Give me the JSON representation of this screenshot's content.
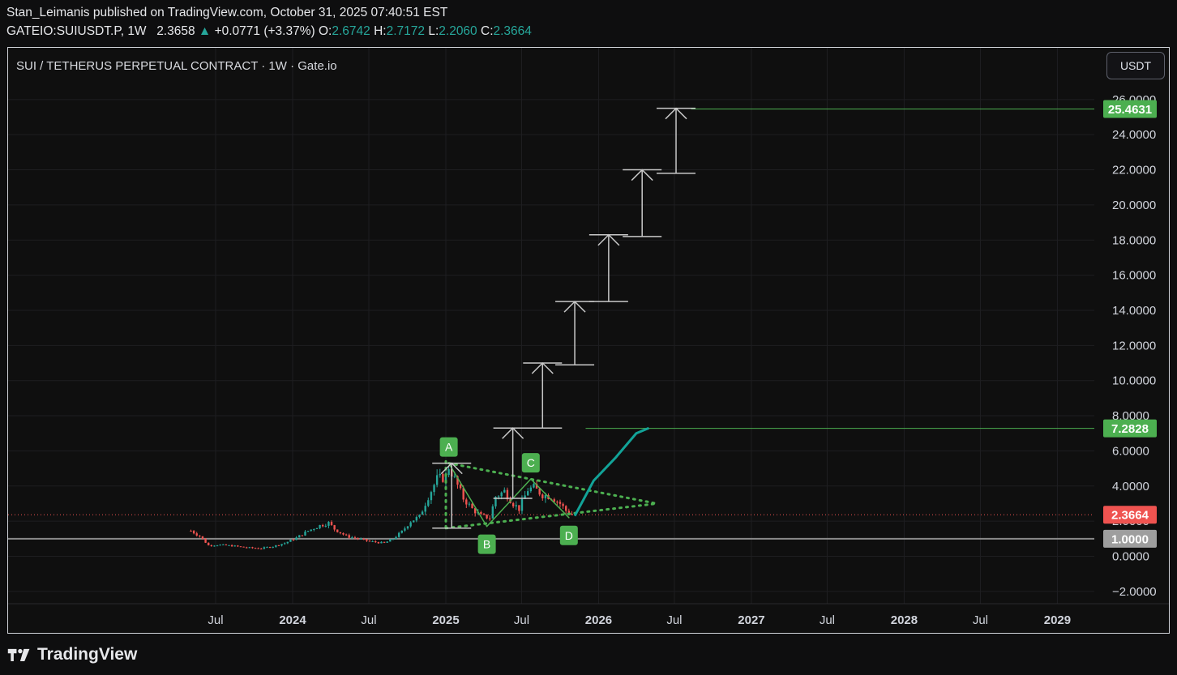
{
  "header": {
    "publish_line": "Stan_Leimanis published on TradingView.com, October 31, 2025 07:40:51 EST",
    "symbol": "GATEIO:SUIUSDT.P",
    "interval": "1W",
    "last": "2.3658",
    "change": "+0.0771 (+3.37%)",
    "o_label": "O:",
    "o": "2.6742",
    "h_label": "H:",
    "h": "2.7172",
    "l_label": "L:",
    "l": "2.2060",
    "c_label": "C:",
    "c": "2.3664"
  },
  "legend": "SUI / TETHERUS PERPETUAL CONTRACT · 1W · Gate.io",
  "currency_button": "USDT",
  "footer": {
    "brand": "TradingView"
  },
  "colors": {
    "up": "#26a69a",
    "down": "#ef5350",
    "pattern": "#4caf50",
    "projection": "#12a398",
    "arrow": "#c8c8c8",
    "level_line": "#8a8a8a"
  },
  "chart_data": {
    "type": "candlestick",
    "title": "SUI / TETHERUS PERPETUAL CONTRACT · 1W · Gate.io",
    "ylim": [
      -3,
      27
    ],
    "y_ticks": [
      -2,
      0,
      2,
      4,
      6,
      8,
      10,
      12,
      14,
      16,
      18,
      20,
      22,
      24,
      26
    ],
    "y_tick_labels": [
      "−2.0000",
      "0.0000",
      "2.0000",
      "4.0000",
      "6.0000",
      "8.0000",
      "10.0000",
      "12.0000",
      "14.0000",
      "16.0000",
      "18.0000",
      "20.0000",
      "22.0000",
      "24.0000",
      "26.0000"
    ],
    "x_range": [
      "2023-04-01",
      "2029-06-15"
    ],
    "x_ticks": [
      {
        "date": "2023-07-01",
        "label": "Jul",
        "bold": false
      },
      {
        "date": "2024-01-01",
        "label": "2024",
        "bold": true
      },
      {
        "date": "2024-07-01",
        "label": "Jul",
        "bold": false
      },
      {
        "date": "2025-01-01",
        "label": "2025",
        "bold": true
      },
      {
        "date": "2025-07-01",
        "label": "Jul",
        "bold": false
      },
      {
        "date": "2026-01-01",
        "label": "2026",
        "bold": true
      },
      {
        "date": "2026-07-01",
        "label": "Jul",
        "bold": false
      },
      {
        "date": "2027-01-01",
        "label": "2027",
        "bold": true
      },
      {
        "date": "2027-07-01",
        "label": "Jul",
        "bold": false
      },
      {
        "date": "2028-01-01",
        "label": "2028",
        "bold": true
      },
      {
        "date": "2028-07-01",
        "label": "Jul",
        "bold": false
      },
      {
        "date": "2029-01-01",
        "label": "2029",
        "bold": true
      }
    ],
    "price_path": [
      [
        "2023-05-03",
        1.45
      ],
      [
        "2023-05-24",
        1.15
      ],
      [
        "2023-06-14",
        0.62
      ],
      [
        "2023-07-12",
        0.65
      ],
      [
        "2023-08-16",
        0.58
      ],
      [
        "2023-09-13",
        0.49
      ],
      [
        "2023-10-18",
        0.45
      ],
      [
        "2023-11-15",
        0.56
      ],
      [
        "2023-12-13",
        0.75
      ],
      [
        "2024-01-10",
        1.05
      ],
      [
        "2024-02-07",
        1.45
      ],
      [
        "2024-03-06",
        1.75
      ],
      [
        "2024-03-27",
        1.9
      ],
      [
        "2024-04-10",
        1.55
      ],
      [
        "2024-05-08",
        1.15
      ],
      [
        "2024-06-05",
        1.0
      ],
      [
        "2024-07-03",
        0.85
      ],
      [
        "2024-08-07",
        0.75
      ],
      [
        "2024-08-28",
        1.0
      ],
      [
        "2024-09-18",
        1.4
      ],
      [
        "2024-10-09",
        2.0
      ],
      [
        "2024-10-30",
        2.25
      ],
      [
        "2024-11-20",
        3.4
      ],
      [
        "2024-12-11",
        4.4
      ],
      [
        "2025-01-01",
        4.5
      ],
      [
        "2025-01-08",
        5.1
      ],
      [
        "2025-01-22",
        4.4
      ],
      [
        "2025-02-12",
        3.3
      ],
      [
        "2025-03-05",
        2.7
      ],
      [
        "2025-03-26",
        2.3
      ],
      [
        "2025-04-16",
        2.2
      ],
      [
        "2025-04-30",
        3.4
      ],
      [
        "2025-05-21",
        3.7
      ],
      [
        "2025-06-11",
        3.0
      ],
      [
        "2025-06-25",
        2.7
      ],
      [
        "2025-07-16",
        3.8
      ],
      [
        "2025-07-30",
        3.9
      ],
      [
        "2025-08-20",
        3.5
      ],
      [
        "2025-09-10",
        3.4
      ],
      [
        "2025-10-01",
        3.0
      ],
      [
        "2025-10-15",
        2.6
      ],
      [
        "2025-10-29",
        2.3664
      ]
    ],
    "last_price": 2.3664,
    "pattern_points": [
      {
        "label": "A",
        "date": "2025-01-08",
        "price": 5.3
      },
      {
        "label": "B",
        "date": "2025-04-09",
        "price": 1.7
      },
      {
        "label": "C",
        "date": "2025-07-23",
        "price": 4.4
      },
      {
        "label": "D",
        "date": "2025-10-22",
        "price": 2.2
      }
    ],
    "target_lines": [
      {
        "label": "25.4631",
        "price": 25.4631,
        "start": "2026-08-10"
      },
      {
        "label": "7.2828",
        "price": 7.2828,
        "start": "2025-12-01"
      }
    ],
    "horizontal_levels": [
      {
        "label": "1.0000",
        "price": 1.0
      }
    ],
    "step_arrows": [
      {
        "x": "2025-01-15",
        "from": 1.6,
        "to": 5.3
      },
      {
        "x": "2025-06-10",
        "from": 3.3,
        "to": 7.3
      },
      {
        "x": "2025-08-20",
        "from": 7.3,
        "to": 11.0
      },
      {
        "x": "2025-11-05",
        "from": 10.9,
        "to": 14.5
      },
      {
        "x": "2026-01-25",
        "from": 14.5,
        "to": 18.3
      },
      {
        "x": "2026-04-15",
        "from": 18.2,
        "to": 22.0
      },
      {
        "x": "2026-07-05",
        "from": 21.8,
        "to": 25.5
      }
    ],
    "projection_path": [
      [
        "2025-11-05",
        2.3
      ],
      [
        "2025-12-20",
        4.3
      ],
      [
        "2026-02-10",
        5.6
      ],
      [
        "2026-04-01",
        7.0
      ],
      [
        "2026-05-01",
        7.3
      ]
    ]
  }
}
